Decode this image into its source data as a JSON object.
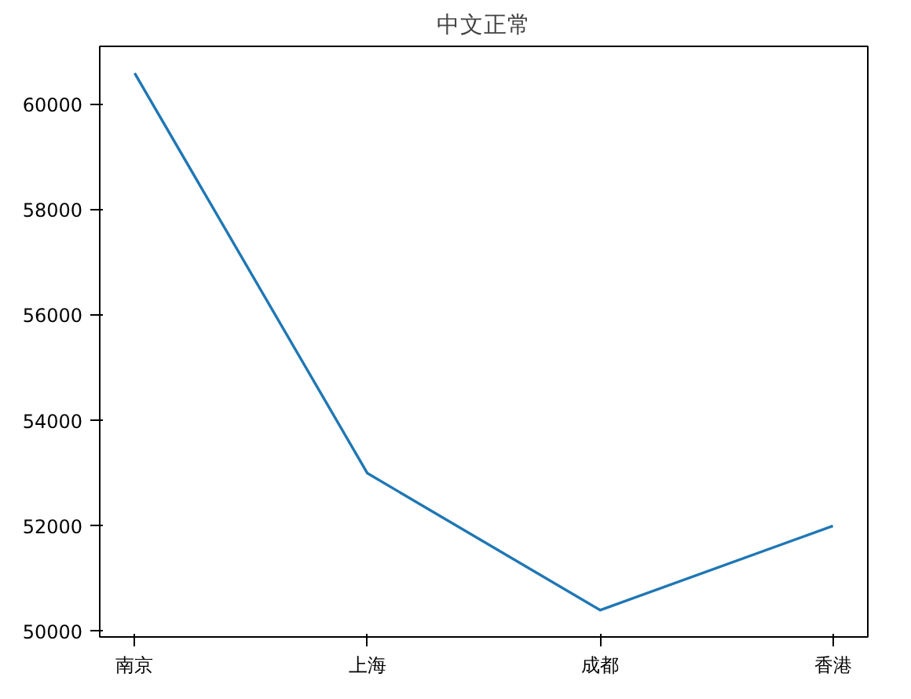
{
  "chart_data": {
    "type": "line",
    "title": "中文正常",
    "categories": [
      "南京",
      "上海",
      "成都",
      "香港"
    ],
    "series": [
      {
        "color": "#1f77b4",
        "values": [
          60600,
          53000,
          50400,
          52000
        ]
      }
    ],
    "ylim": [
      49890,
      61110
    ],
    "yticks": [
      50000,
      52000,
      54000,
      56000,
      58000,
      60000
    ],
    "grid": false,
    "marker": "none",
    "line_style": "solid"
  }
}
